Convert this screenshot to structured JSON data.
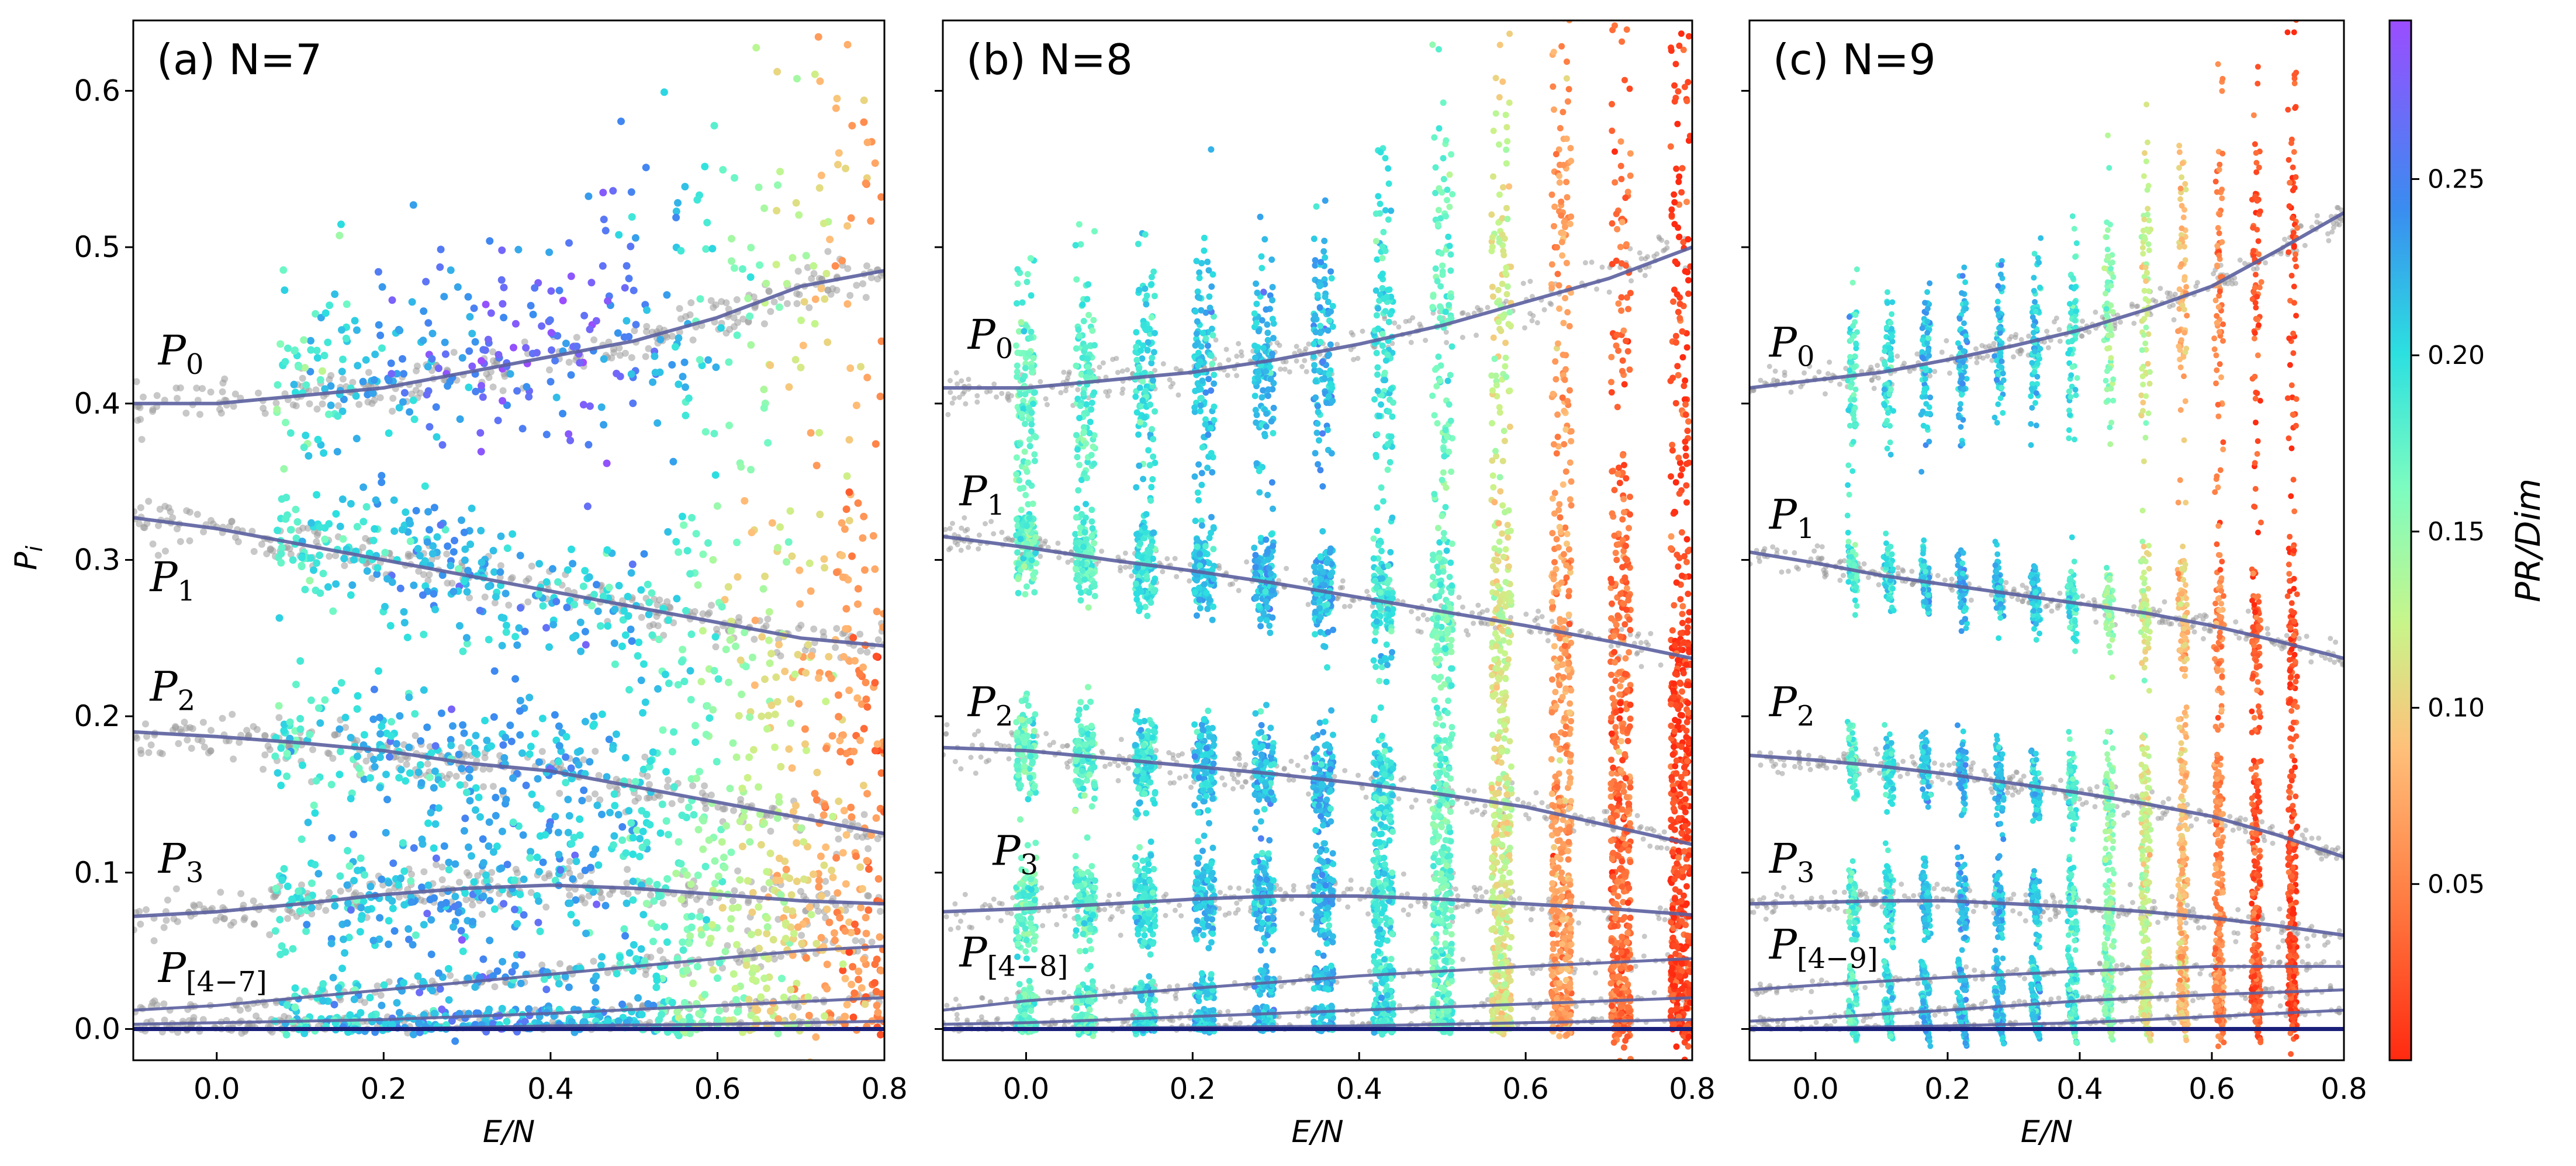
{
  "chart_data": {
    "type": "scatter",
    "colorbar": {
      "label": "PR/Dim",
      "range": [
        0.0,
        0.295
      ],
      "ticks": [
        0.05,
        0.1,
        0.15,
        0.2,
        0.25
      ],
      "tick_labels": [
        "0.05",
        "0.10",
        "0.15",
        "0.20",
        "0.25"
      ],
      "colormap": "rainbow_r"
    },
    "ylabel": "P_i",
    "panels": [
      {
        "title": "(a) N=7",
        "xlabel": "E/N",
        "xlim": [
          -0.1,
          0.8
        ],
        "ylim": [
          -0.02,
          0.645
        ],
        "xticks": [
          0.0,
          0.2,
          0.4,
          0.6,
          0.8
        ],
        "xtick_labels": [
          "0.0",
          "0.2",
          "0.4",
          "0.6",
          "0.8"
        ],
        "yticks": [
          0.0,
          0.1,
          0.2,
          0.3,
          0.4,
          0.5,
          0.6
        ],
        "ytick_labels": [
          "0.0",
          "0.1",
          "0.2",
          "0.3",
          "0.4",
          "0.5",
          "0.6"
        ],
        "continuous": true,
        "x_min": 0.07,
        "x_max": 0.8,
        "labels": [
          {
            "main": "P",
            "sub": "0",
            "x": -0.07,
            "y": 0.425
          },
          {
            "main": "P",
            "sub": "1",
            "x": -0.08,
            "y": 0.28
          },
          {
            "main": "P",
            "sub": "2",
            "x": -0.08,
            "y": 0.21
          },
          {
            "main": "P",
            "sub": "3",
            "x": -0.07,
            "y": 0.1
          },
          {
            "main": "P",
            "sub": "[4−7]",
            "x": -0.07,
            "y": 0.03
          }
        ],
        "curves": [
          {
            "name": "P0",
            "x": [
              -0.1,
              0.0,
              0.1,
              0.2,
              0.3,
              0.4,
              0.5,
              0.6,
              0.7,
              0.8
            ],
            "y": [
              0.4,
              0.4,
              0.405,
              0.41,
              0.42,
              0.43,
              0.44,
              0.455,
              0.475,
              0.485
            ],
            "spread": 0.012,
            "pr": [
              0.16,
              0.23,
              0.27,
              0.25,
              0.14,
              0.06
            ]
          },
          {
            "name": "P1",
            "x": [
              -0.1,
              0.0,
              0.1,
              0.2,
              0.3,
              0.4,
              0.5,
              0.6,
              0.7,
              0.8
            ],
            "y": [
              0.327,
              0.32,
              0.31,
              0.3,
              0.29,
              0.28,
              0.27,
              0.26,
              0.25,
              0.245
            ],
            "spread": 0.012,
            "pr": [
              0.17,
              0.21,
              0.22,
              0.2,
              0.12,
              0.05
            ]
          },
          {
            "name": "P2",
            "x": [
              -0.1,
              0.0,
              0.1,
              0.2,
              0.3,
              0.4,
              0.5,
              0.6,
              0.7,
              0.8
            ],
            "y": [
              0.19,
              0.187,
              0.183,
              0.178,
              0.17,
              0.165,
              0.155,
              0.145,
              0.135,
              0.125
            ],
            "spread": 0.013,
            "pr": [
              0.17,
              0.21,
              0.23,
              0.21,
              0.12,
              0.05
            ]
          },
          {
            "name": "P3",
            "x": [
              -0.1,
              0.0,
              0.1,
              0.2,
              0.3,
              0.4,
              0.5,
              0.6,
              0.7,
              0.8
            ],
            "y": [
              0.072,
              0.075,
              0.08,
              0.086,
              0.09,
              0.092,
              0.09,
              0.086,
              0.082,
              0.08
            ],
            "spread": 0.013,
            "pr": [
              0.18,
              0.22,
              0.23,
              0.2,
              0.12,
              0.05
            ]
          },
          {
            "name": "P4",
            "x": [
              -0.1,
              0.0,
              0.1,
              0.2,
              0.3,
              0.4,
              0.5,
              0.6,
              0.7,
              0.8
            ],
            "y": [
              0.012,
              0.015,
              0.02,
              0.025,
              0.03,
              0.035,
              0.04,
              0.045,
              0.05,
              0.053
            ],
            "spread": 0.006,
            "pr": [
              0.18,
              0.22,
              0.23,
              0.2,
              0.12,
              0.05
            ]
          },
          {
            "name": "P5",
            "x": [
              -0.1,
              0.0,
              0.2,
              0.4,
              0.6,
              0.8
            ],
            "y": [
              0.003,
              0.004,
              0.006,
              0.01,
              0.015,
              0.02
            ],
            "spread": 0.003,
            "pr": [
              0.18,
              0.22,
              0.23,
              0.2,
              0.12,
              0.05
            ]
          },
          {
            "name": "P6",
            "x": [
              -0.1,
              0.2,
              0.4,
              0.6,
              0.8
            ],
            "y": [
              0.0,
              0.0,
              0.002,
              0.003,
              0.005
            ],
            "spread": 0.002,
            "pr": [
              0.18,
              0.22,
              0.23,
              0.2,
              0.12,
              0.05
            ]
          }
        ]
      },
      {
        "title": "(b) N=8",
        "xlabel": "E/N",
        "xlim": [
          -0.1,
          0.8
        ],
        "ylim": [
          -0.02,
          0.645
        ],
        "xticks": [
          0.0,
          0.2,
          0.4,
          0.6,
          0.8
        ],
        "xtick_labels": [
          "0.0",
          "0.2",
          "0.4",
          "0.6",
          "0.8"
        ],
        "yticks": [
          0.0,
          0.1,
          0.2,
          0.3,
          0.4,
          0.5,
          0.6
        ],
        "ytick_labels": [
          "",
          "",
          "",
          "",
          "",
          "",
          ""
        ],
        "continuous": false,
        "columns": [
          0.0,
          0.071,
          0.143,
          0.214,
          0.286,
          0.357,
          0.429,
          0.5,
          0.571,
          0.643,
          0.714,
          0.786
        ],
        "labels": [
          {
            "main": "P",
            "sub": "0",
            "x": -0.07,
            "y": 0.435
          },
          {
            "main": "P",
            "sub": "1",
            "x": -0.08,
            "y": 0.335
          },
          {
            "main": "P",
            "sub": "2",
            "x": -0.07,
            "y": 0.2
          },
          {
            "main": "P",
            "sub": "3",
            "x": -0.04,
            "y": 0.105
          },
          {
            "main": "P",
            "sub": "[4−8]",
            "x": -0.08,
            "y": 0.04
          }
        ],
        "curves": [
          {
            "name": "P0",
            "x": [
              -0.1,
              0.0,
              0.1,
              0.2,
              0.3,
              0.4,
              0.5,
              0.6,
              0.7,
              0.8
            ],
            "y": [
              0.41,
              0.41,
              0.415,
              0.42,
              0.428,
              0.438,
              0.45,
              0.465,
              0.48,
              0.5
            ],
            "spread": 0.012,
            "pr": [
              0.17,
              0.21,
              0.22,
              0.17,
              0.06,
              0.01
            ]
          },
          {
            "name": "P1",
            "x": [
              -0.1,
              0.0,
              0.1,
              0.2,
              0.3,
              0.4,
              0.5,
              0.6,
              0.7,
              0.8
            ],
            "y": [
              0.315,
              0.308,
              0.3,
              0.293,
              0.285,
              0.276,
              0.267,
              0.258,
              0.248,
              0.237
            ],
            "spread": 0.01,
            "pr": [
              0.17,
              0.21,
              0.22,
              0.17,
              0.06,
              0.01
            ]
          },
          {
            "name": "P2",
            "x": [
              -0.1,
              0.0,
              0.1,
              0.2,
              0.3,
              0.4,
              0.5,
              0.6,
              0.7,
              0.8
            ],
            "y": [
              0.18,
              0.178,
              0.173,
              0.168,
              0.163,
              0.157,
              0.15,
              0.142,
              0.13,
              0.118
            ],
            "spread": 0.011,
            "pr": [
              0.17,
              0.21,
              0.22,
              0.17,
              0.06,
              0.01
            ]
          },
          {
            "name": "P3",
            "x": [
              -0.1,
              0.0,
              0.1,
              0.2,
              0.3,
              0.4,
              0.5,
              0.6,
              0.7,
              0.8
            ],
            "y": [
              0.075,
              0.077,
              0.08,
              0.083,
              0.085,
              0.085,
              0.083,
              0.08,
              0.077,
              0.073
            ],
            "spread": 0.011,
            "pr": [
              0.17,
              0.21,
              0.22,
              0.17,
              0.06,
              0.01
            ]
          },
          {
            "name": "P4",
            "x": [
              -0.1,
              0.0,
              0.2,
              0.4,
              0.6,
              0.8
            ],
            "y": [
              0.012,
              0.018,
              0.026,
              0.034,
              0.04,
              0.045
            ],
            "spread": 0.005,
            "pr": [
              0.17,
              0.21,
              0.22,
              0.17,
              0.06,
              0.01
            ]
          },
          {
            "name": "P5",
            "x": [
              -0.1,
              0.0,
              0.2,
              0.4,
              0.6,
              0.8
            ],
            "y": [
              0.003,
              0.004,
              0.008,
              0.012,
              0.016,
              0.02
            ],
            "spread": 0.003,
            "pr": [
              0.17,
              0.21,
              0.22,
              0.17,
              0.06,
              0.01
            ]
          },
          {
            "name": "P6",
            "x": [
              -0.1,
              0.2,
              0.4,
              0.6,
              0.8
            ],
            "y": [
              0.0,
              0.001,
              0.002,
              0.004,
              0.006
            ],
            "spread": 0.002,
            "pr": [
              0.17,
              0.21,
              0.22,
              0.17,
              0.06,
              0.01
            ]
          }
        ]
      },
      {
        "title": "(c) N=9",
        "xlabel": "E/N",
        "xlim": [
          -0.1,
          0.8
        ],
        "ylim": [
          -0.02,
          0.645
        ],
        "xticks": [
          0.0,
          0.2,
          0.4,
          0.6,
          0.8
        ],
        "xtick_labels": [
          "0.0",
          "0.2",
          "0.4",
          "0.6",
          "0.8"
        ],
        "yticks": [
          0.0,
          0.1,
          0.2,
          0.3,
          0.4,
          0.5,
          0.6
        ],
        "ytick_labels": [
          "",
          "",
          "",
          "",
          "",
          "",
          ""
        ],
        "continuous": false,
        "columns": [
          0.056,
          0.111,
          0.167,
          0.222,
          0.278,
          0.333,
          0.389,
          0.444,
          0.5,
          0.556,
          0.611,
          0.667,
          0.722
        ],
        "labels": [
          {
            "main": "P",
            "sub": "0",
            "x": -0.07,
            "y": 0.43
          },
          {
            "main": "P",
            "sub": "1",
            "x": -0.07,
            "y": 0.32
          },
          {
            "main": "P",
            "sub": "2",
            "x": -0.07,
            "y": 0.2
          },
          {
            "main": "P",
            "sub": "3",
            "x": -0.07,
            "y": 0.1
          },
          {
            "main": "P",
            "sub": "[4−9]",
            "x": -0.07,
            "y": 0.045
          }
        ],
        "curves": [
          {
            "name": "P0",
            "x": [
              -0.1,
              0.0,
              0.1,
              0.2,
              0.3,
              0.4,
              0.5,
              0.6,
              0.7,
              0.8
            ],
            "y": [
              0.41,
              0.415,
              0.42,
              0.428,
              0.437,
              0.447,
              0.46,
              0.475,
              0.498,
              0.522
            ],
            "spread": 0.008,
            "pr": [
              0.18,
              0.22,
              0.21,
              0.12,
              0.03,
              0.005
            ]
          },
          {
            "name": "P1",
            "x": [
              -0.1,
              0.0,
              0.1,
              0.2,
              0.3,
              0.4,
              0.5,
              0.6,
              0.7,
              0.8
            ],
            "y": [
              0.305,
              0.298,
              0.29,
              0.284,
              0.278,
              0.272,
              0.266,
              0.258,
              0.248,
              0.237
            ],
            "spread": 0.007,
            "pr": [
              0.18,
              0.22,
              0.21,
              0.12,
              0.03,
              0.005
            ]
          },
          {
            "name": "P2",
            "x": [
              -0.1,
              0.0,
              0.1,
              0.2,
              0.3,
              0.4,
              0.5,
              0.6,
              0.7,
              0.8
            ],
            "y": [
              0.175,
              0.172,
              0.168,
              0.163,
              0.157,
              0.151,
              0.144,
              0.136,
              0.124,
              0.11
            ],
            "spread": 0.008,
            "pr": [
              0.18,
              0.22,
              0.21,
              0.12,
              0.03,
              0.005
            ]
          },
          {
            "name": "P3",
            "x": [
              -0.1,
              0.0,
              0.1,
              0.2,
              0.3,
              0.4,
              0.5,
              0.6,
              0.7,
              0.8
            ],
            "y": [
              0.08,
              0.081,
              0.082,
              0.082,
              0.08,
              0.078,
              0.075,
              0.071,
              0.066,
              0.06
            ],
            "spread": 0.008,
            "pr": [
              0.18,
              0.22,
              0.21,
              0.12,
              0.03,
              0.005
            ]
          },
          {
            "name": "P4",
            "x": [
              -0.1,
              0.0,
              0.2,
              0.4,
              0.6,
              0.8
            ],
            "y": [
              0.025,
              0.028,
              0.033,
              0.037,
              0.04,
              0.04
            ],
            "spread": 0.004,
            "pr": [
              0.18,
              0.22,
              0.21,
              0.12,
              0.03,
              0.005
            ]
          },
          {
            "name": "P5",
            "x": [
              -0.1,
              0.0,
              0.2,
              0.4,
              0.6,
              0.8
            ],
            "y": [
              0.005,
              0.007,
              0.012,
              0.018,
              0.022,
              0.025
            ],
            "spread": 0.003,
            "pr": [
              0.18,
              0.22,
              0.21,
              0.12,
              0.03,
              0.005
            ]
          },
          {
            "name": "P6",
            "x": [
              -0.1,
              0.2,
              0.4,
              0.6,
              0.8
            ],
            "y": [
              0.0,
              0.002,
              0.004,
              0.008,
              0.012
            ],
            "spread": 0.002,
            "pr": [
              0.18,
              0.22,
              0.21,
              0.12,
              0.03,
              0.005
            ]
          }
        ]
      }
    ]
  }
}
